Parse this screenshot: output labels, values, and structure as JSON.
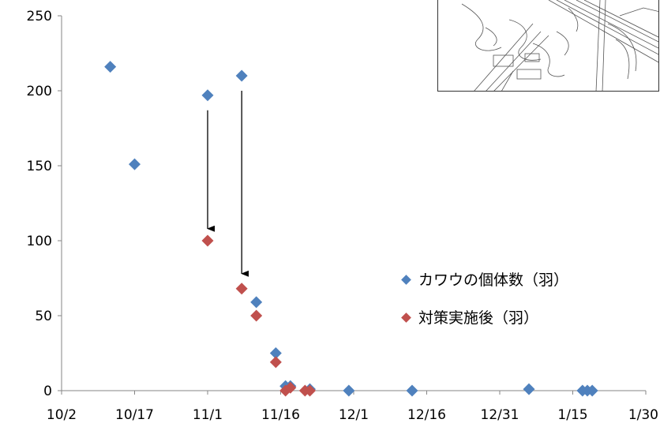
{
  "chart_data": {
    "type": "scatter",
    "title": "",
    "xlabel": "",
    "ylabel": "",
    "x_tick_labels": [
      "10/2",
      "10/17",
      "11/1",
      "11/16",
      "12/1",
      "12/16",
      "12/31",
      "1/15",
      "1/30"
    ],
    "y_tick_labels": [
      "0",
      "50",
      "100",
      "150",
      "200",
      "250"
    ],
    "xlim": [
      "10/2",
      "1/30"
    ],
    "ylim": [
      0,
      250
    ],
    "grid": false,
    "legend_position": "right",
    "series": [
      {
        "name": "カワウの個体数（羽）",
        "color": "#4f81bd",
        "marker": "diamond",
        "points": [
          {
            "x": "10/12",
            "y": 216
          },
          {
            "x": "10/17",
            "y": 151
          },
          {
            "x": "11/1",
            "y": 197
          },
          {
            "x": "11/8",
            "y": 210
          },
          {
            "x": "11/11",
            "y": 59
          },
          {
            "x": "11/15",
            "y": 25
          },
          {
            "x": "11/17",
            "y": 3
          },
          {
            "x": "11/18",
            "y": 3
          },
          {
            "x": "11/22",
            "y": 1
          },
          {
            "x": "11/30",
            "y": 0
          },
          {
            "x": "12/13",
            "y": 0
          },
          {
            "x": "1/6",
            "y": 1
          },
          {
            "x": "1/17",
            "y": 0
          },
          {
            "x": "1/18",
            "y": 0
          },
          {
            "x": "1/19",
            "y": 0
          }
        ]
      },
      {
        "name": "対策実施後（羽）",
        "color": "#c0504d",
        "marker": "diamond",
        "points": [
          {
            "x": "11/1",
            "y": 100
          },
          {
            "x": "11/8",
            "y": 68
          },
          {
            "x": "11/11",
            "y": 50
          },
          {
            "x": "11/15",
            "y": 19
          },
          {
            "x": "11/17",
            "y": 0
          },
          {
            "x": "11/18",
            "y": 2
          },
          {
            "x": "11/21",
            "y": 0
          },
          {
            "x": "11/22",
            "y": 0
          }
        ]
      }
    ],
    "annotations": [
      {
        "type": "arrow",
        "x": "11/1",
        "from_y": 187,
        "to_y": 108
      },
      {
        "type": "arrow",
        "x": "11/8",
        "from_y": 200,
        "to_y": 78
      }
    ]
  }
}
